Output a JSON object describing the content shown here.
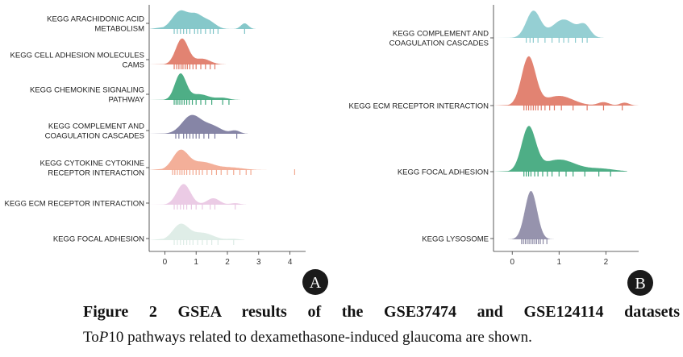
{
  "chart_data": [
    {
      "type": "ridgeline",
      "panel": "A",
      "xlim": [
        -0.5,
        4.5
      ],
      "xticks": [
        0,
        1,
        2,
        3,
        4
      ],
      "series": [
        {
          "name": "KEGG ARACHIDONIC ACID METABOLISM",
          "lines": [
            "KEGG ARACHIDONIC ACID",
            "METABOLISM"
          ],
          "color": "#7cc3c6",
          "peaks": [
            [
              0.5,
              0.26,
              0.7
            ],
            [
              1.0,
              0.2,
              0.45
            ],
            [
              1.4,
              0.22,
              0.3
            ],
            [
              2.55,
              0.12,
              0.22
            ]
          ],
          "rug": [
            0.3,
            0.4,
            0.5,
            0.6,
            0.7,
            0.8,
            0.95,
            1.05,
            1.15,
            1.3,
            1.45,
            1.55,
            1.7,
            2.55
          ]
        },
        {
          "name": "KEGG CELL ADHESION MOLECULES CAMS",
          "lines": [
            "KEGG CELL ADHESION MOLECULES",
            "CAMS"
          ],
          "color": "#e07866",
          "peaks": [
            [
              0.55,
              0.2,
              1.0
            ],
            [
              1.2,
              0.25,
              0.22
            ]
          ],
          "rug": [
            0.3,
            0.38,
            0.45,
            0.52,
            0.58,
            0.65,
            0.72,
            0.8,
            0.9,
            1.0,
            1.15,
            1.3,
            1.45,
            1.6
          ]
        },
        {
          "name": "KEGG CHEMOKINE SIGNALING PATHWAY",
          "lines": [
            "KEGG CHEMOKINE SIGNALING",
            "PATHWAY"
          ],
          "color": "#3fa77c",
          "peaks": [
            [
              0.5,
              0.18,
              1.0
            ],
            [
              1.1,
              0.3,
              0.22
            ],
            [
              1.85,
              0.2,
              0.08
            ]
          ],
          "rug": [
            0.3,
            0.36,
            0.42,
            0.48,
            0.55,
            0.62,
            0.7,
            0.78,
            0.88,
            1.0,
            1.15,
            1.3,
            1.5,
            1.85,
            2.05
          ]
        },
        {
          "name": "KEGG COMPLEMENT AND COAGULATION CASCADES",
          "lines": [
            "KEGG COMPLEMENT AND",
            "COAGULATION CASCADES"
          ],
          "color": "#7c7b9e",
          "peaks": [
            [
              0.85,
              0.3,
              0.7
            ],
            [
              1.5,
              0.3,
              0.3
            ],
            [
              2.25,
              0.15,
              0.12
            ]
          ],
          "rug": [
            0.35,
            0.45,
            0.6,
            0.7,
            0.8,
            0.9,
            1.0,
            1.1,
            1.25,
            1.4,
            1.6,
            2.3
          ]
        },
        {
          "name": "KEGG CYTOKINE CYTOKINE RECEPTOR INTERACTION",
          "lines": [
            "KEGG CYTOKINE CYTOKINE",
            "RECEPTOR INTERACTION"
          ],
          "color": "#f2a890",
          "peaks": [
            [
              0.5,
              0.25,
              0.75
            ],
            [
              1.2,
              0.35,
              0.3
            ],
            [
              2.1,
              0.4,
              0.1
            ]
          ],
          "rug": [
            0.25,
            0.32,
            0.4,
            0.48,
            0.55,
            0.62,
            0.7,
            0.8,
            0.9,
            1.0,
            1.1,
            1.2,
            1.35,
            1.5,
            1.65,
            1.8,
            2.0,
            2.2,
            2.4,
            2.6,
            2.75,
            4.15
          ]
        },
        {
          "name": "KEGG ECM RECEPTOR INTERACTION",
          "lines": [
            "KEGG ECM RECEPTOR INTERACTION"
          ],
          "color": "#e9c7e3",
          "peaks": [
            [
              0.6,
              0.22,
              0.8
            ],
            [
              1.55,
              0.2,
              0.25
            ],
            [
              2.25,
              0.15,
              0.06
            ]
          ],
          "rug": [
            0.3,
            0.4,
            0.5,
            0.6,
            0.7,
            0.85,
            1.0,
            1.2,
            1.45,
            1.6,
            2.25
          ]
        },
        {
          "name": "KEGG FOCAL ADHESION",
          "lines": [
            "KEGG FOCAL ADHESION"
          ],
          "color": "#dcebe5",
          "peaks": [
            [
              0.5,
              0.25,
              0.6
            ],
            [
              1.2,
              0.35,
              0.28
            ],
            [
              2.2,
              0.2,
              0.05
            ]
          ],
          "rug": [
            0.3,
            0.4,
            0.5,
            0.6,
            0.7,
            0.8,
            0.9,
            1.05,
            1.2,
            1.35,
            1.5,
            1.7,
            2.2
          ]
        }
      ]
    },
    {
      "type": "ridgeline",
      "panel": "B",
      "xlim": [
        -0.4,
        2.7
      ],
      "xticks": [
        0,
        1,
        2
      ],
      "series": [
        {
          "name": "KEGG COMPLEMENT AND COAGULATION CASCADES",
          "lines": [
            "KEGG COMPLEMENT AND",
            "COAGULATION CASCADES"
          ],
          "color": "#8ccbcf",
          "peaks": [
            [
              0.45,
              0.15,
              0.55
            ],
            [
              1.1,
              0.25,
              0.38
            ],
            [
              1.55,
              0.12,
              0.22
            ]
          ],
          "rug": [
            0.3,
            0.38,
            0.45,
            0.55,
            0.7,
            0.85,
            1.0,
            1.1,
            1.2,
            1.35,
            1.5,
            1.6
          ]
        },
        {
          "name": "KEGG ECM RECEPTOR INTERACTION",
          "lines": [
            "KEGG ECM RECEPTOR INTERACTION"
          ],
          "color": "#e07866",
          "peaks": [
            [
              0.35,
              0.15,
              1.0
            ],
            [
              1.0,
              0.3,
              0.2
            ],
            [
              1.95,
              0.12,
              0.07
            ],
            [
              2.4,
              0.1,
              0.06
            ]
          ],
          "rug": [
            0.25,
            0.3,
            0.35,
            0.4,
            0.45,
            0.5,
            0.55,
            0.62,
            0.7,
            0.8,
            0.9,
            1.05,
            1.3,
            1.6,
            1.95,
            2.35
          ]
        },
        {
          "name": "KEGG FOCAL ADHESION",
          "lines": [
            "KEGG FOCAL ADHESION"
          ],
          "color": "#3fa77c",
          "peaks": [
            [
              0.35,
              0.15,
              0.9
            ],
            [
              1.0,
              0.35,
              0.25
            ],
            [
              1.9,
              0.3,
              0.06
            ]
          ],
          "rug": [
            0.25,
            0.3,
            0.35,
            0.4,
            0.48,
            0.55,
            0.65,
            0.75,
            0.85,
            1.0,
            1.15,
            1.3,
            1.55,
            1.85,
            2.1
          ]
        },
        {
          "name": "KEGG LYSOSOME",
          "lines": [
            "KEGG LYSOSOME"
          ],
          "color": "#8d8aa6",
          "peaks": [
            [
              0.4,
              0.13,
              1.0
            ]
          ],
          "rug": [
            0.2,
            0.24,
            0.28,
            0.32,
            0.36,
            0.4,
            0.44,
            0.48,
            0.52,
            0.56,
            0.6,
            0.66,
            0.74
          ]
        }
      ]
    }
  ],
  "panel_labels": {
    "a": "A",
    "b": "B"
  },
  "caption": {
    "title": "Figure 2 GSEA results of the GSE37474 and GSE124114 datasets",
    "line2_pre": "To",
    "line2_italic": "P",
    "line2_post": "10 pathways related to dexamethasone-induced glaucoma are shown."
  }
}
